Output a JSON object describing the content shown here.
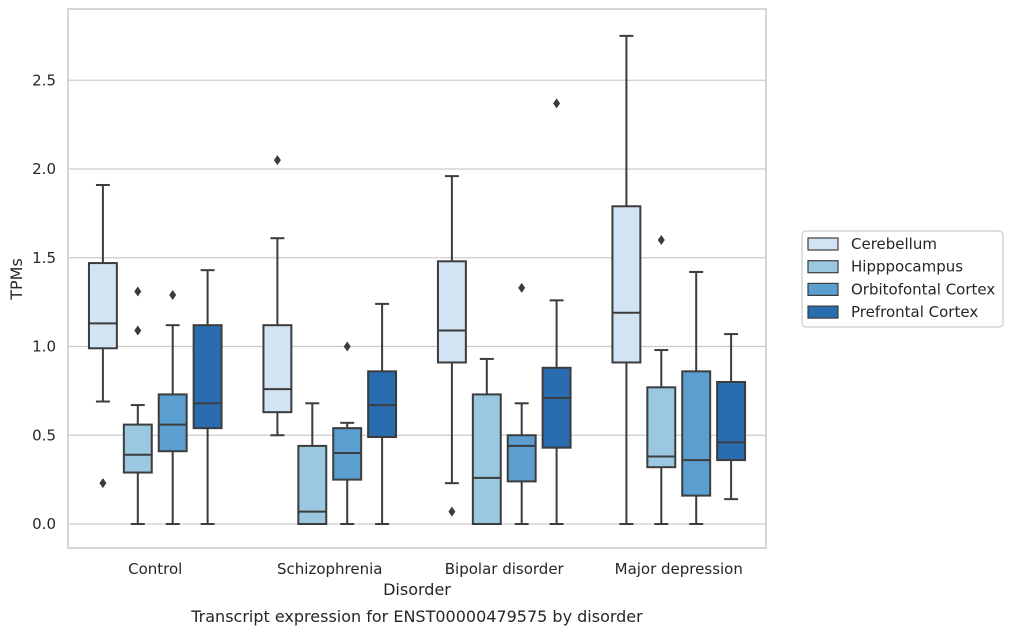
{
  "chart_data": {
    "type": "box",
    "title": "",
    "caption": "Transcript expression for ENST00000479575 by disorder",
    "xlabel": "Disorder",
    "ylabel": "TPMs",
    "ylim": [
      -0.13,
      2.89
    ],
    "yticks": [
      "0.0",
      "0.5",
      "1.0",
      "1.5",
      "2.0",
      "2.5"
    ],
    "grid": true,
    "legend_position": "right",
    "categories": [
      "Control",
      "Schizophrenia",
      "Bipolar disorder",
      "Major depression"
    ],
    "series": [
      {
        "name": "Cerebellum",
        "color": "#d2e3f3",
        "boxes": [
          {
            "whisker_low": 0.69,
            "q1": 0.99,
            "median": 1.13,
            "q3": 1.47,
            "whisker_high": 1.91,
            "outliers": [
              0.23
            ]
          },
          {
            "whisker_low": 0.5,
            "q1": 0.63,
            "median": 0.76,
            "q3": 1.12,
            "whisker_high": 1.61,
            "outliers": [
              2.05
            ]
          },
          {
            "whisker_low": 0.23,
            "q1": 0.91,
            "median": 1.09,
            "q3": 1.48,
            "whisker_high": 1.96,
            "outliers": [
              0.07
            ]
          },
          {
            "whisker_low": 0.0,
            "q1": 0.91,
            "median": 1.19,
            "q3": 1.79,
            "whisker_high": 2.75,
            "outliers": []
          }
        ]
      },
      {
        "name": "Hipppocampus",
        "color": "#9ac8e0",
        "boxes": [
          {
            "whisker_low": 0.0,
            "q1": 0.29,
            "median": 0.39,
            "q3": 0.56,
            "whisker_high": 0.67,
            "outliers": [
              1.09,
              1.31
            ]
          },
          {
            "whisker_low": 0.0,
            "q1": 0.0,
            "median": 0.07,
            "q3": 0.44,
            "whisker_high": 0.68,
            "outliers": []
          },
          {
            "whisker_low": 0.0,
            "q1": 0.0,
            "median": 0.26,
            "q3": 0.73,
            "whisker_high": 0.93,
            "outliers": []
          },
          {
            "whisker_low": 0.0,
            "q1": 0.32,
            "median": 0.38,
            "q3": 0.77,
            "whisker_high": 0.98,
            "outliers": [
              1.6
            ]
          }
        ]
      },
      {
        "name": "Orbitofontal Cortex",
        "color": "#5a9fcf",
        "boxes": [
          {
            "whisker_low": 0.0,
            "q1": 0.41,
            "median": 0.56,
            "q3": 0.73,
            "whisker_high": 1.12,
            "outliers": [
              1.29
            ]
          },
          {
            "whisker_low": 0.0,
            "q1": 0.25,
            "median": 0.4,
            "q3": 0.54,
            "whisker_high": 0.57,
            "outliers": [
              1.0
            ]
          },
          {
            "whisker_low": 0.0,
            "q1": 0.24,
            "median": 0.44,
            "q3": 0.5,
            "whisker_high": 0.68,
            "outliers": [
              1.33
            ]
          },
          {
            "whisker_low": 0.0,
            "q1": 0.16,
            "median": 0.36,
            "q3": 0.86,
            "whisker_high": 1.42,
            "outliers": []
          }
        ]
      },
      {
        "name": "Prefrontal Cortex",
        "color": "#2a6cb0",
        "boxes": [
          {
            "whisker_low": 0.0,
            "q1": 0.54,
            "median": 0.68,
            "q3": 1.12,
            "whisker_high": 1.43,
            "outliers": []
          },
          {
            "whisker_low": 0.0,
            "q1": 0.49,
            "median": 0.67,
            "q3": 0.86,
            "whisker_high": 1.24,
            "outliers": []
          },
          {
            "whisker_low": 0.0,
            "q1": 0.43,
            "median": 0.71,
            "q3": 0.88,
            "whisker_high": 1.26,
            "outliers": [
              2.37
            ]
          },
          {
            "whisker_low": 0.14,
            "q1": 0.36,
            "median": 0.46,
            "q3": 0.8,
            "whisker_high": 1.07,
            "outliers": []
          }
        ]
      }
    ]
  }
}
